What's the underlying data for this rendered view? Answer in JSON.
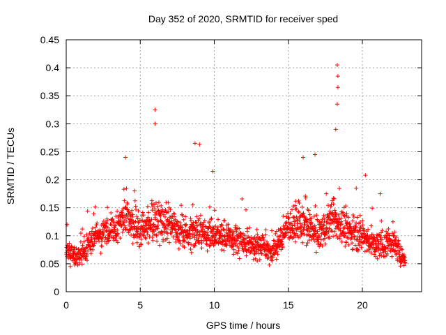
{
  "chart_data": {
    "type": "scatter",
    "title": "Day 352 of 2020, SRMTID for receiver sped",
    "xlabel": "GPS time / hours",
    "ylabel": "SRMTID / TECUs",
    "xlim": [
      0,
      24
    ],
    "ylim": [
      0,
      0.45
    ],
    "xticks": [
      0,
      5,
      10,
      15,
      20
    ],
    "yticks": [
      0,
      0.05,
      0.1,
      0.15,
      0.2,
      0.25,
      0.3,
      0.35,
      0.4,
      0.45
    ],
    "xtick_labels": [
      "0",
      "5",
      "10",
      "15",
      "20"
    ],
    "ytick_labels": [
      "0",
      "0.05",
      "0.1",
      "0.15",
      "0.2",
      "0.25",
      "0.3",
      "0.35",
      "0.4",
      "0.45"
    ],
    "grid": true,
    "marker": "+",
    "color": "#ff0000",
    "series": [
      {
        "name": "SRMTID",
        "approximate_envelope": {
          "x_hours": [
            0,
            1,
            2,
            3,
            4,
            5,
            6,
            7,
            8,
            9,
            10,
            11,
            12,
            13,
            14,
            15,
            16,
            17,
            18,
            19,
            20,
            21,
            22,
            23
          ],
          "median": [
            0.07,
            0.065,
            0.1,
            0.11,
            0.13,
            0.11,
            0.13,
            0.12,
            0.1,
            0.11,
            0.1,
            0.095,
            0.09,
            0.085,
            0.07,
            0.12,
            0.12,
            0.1,
            0.13,
            0.11,
            0.1,
            0.08,
            0.09,
            0.05
          ],
          "spread": [
            0.02,
            0.02,
            0.025,
            0.025,
            0.03,
            0.03,
            0.035,
            0.03,
            0.03,
            0.03,
            0.025,
            0.025,
            0.025,
            0.025,
            0.02,
            0.03,
            0.03,
            0.03,
            0.03,
            0.03,
            0.025,
            0.025,
            0.025,
            0.01
          ]
        },
        "notable_peaks": [
          {
            "x": 4.0,
            "y": 0.24
          },
          {
            "x": 6.0,
            "y": 0.325
          },
          {
            "x": 6.0,
            "y": 0.3
          },
          {
            "x": 8.7,
            "y": 0.265
          },
          {
            "x": 9.0,
            "y": 0.263
          },
          {
            "x": 9.9,
            "y": 0.215
          },
          {
            "x": 16.0,
            "y": 0.24
          },
          {
            "x": 16.8,
            "y": 0.245
          },
          {
            "x": 18.3,
            "y": 0.405
          },
          {
            "x": 18.35,
            "y": 0.385
          },
          {
            "x": 18.35,
            "y": 0.365
          },
          {
            "x": 18.3,
            "y": 0.335
          },
          {
            "x": 18.2,
            "y": 0.29
          },
          {
            "x": 20.2,
            "y": 0.208
          },
          {
            "x": 21.2,
            "y": 0.175
          }
        ]
      }
    ]
  }
}
